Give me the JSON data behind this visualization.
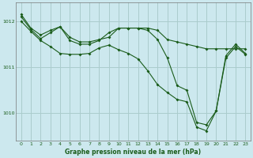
{
  "title": "Graphe pression niveau de la mer (hPa)",
  "background_color": "#cce8ee",
  "grid_color": "#aacccc",
  "line_color": "#1a5c1a",
  "xlim": [
    -0.5,
    23.5
  ],
  "ylim": [
    1009.4,
    1012.4
  ],
  "yticks": [
    1010,
    1011,
    1012
  ],
  "xticks": [
    0,
    1,
    2,
    3,
    4,
    5,
    6,
    7,
    8,
    9,
    10,
    11,
    12,
    13,
    14,
    15,
    16,
    17,
    18,
    19,
    20,
    21,
    22,
    23
  ],
  "series1": {
    "x": [
      0,
      1,
      2,
      3,
      4,
      5,
      6,
      7,
      8,
      9,
      10,
      11,
      12,
      13,
      14,
      15,
      16,
      17,
      18,
      19,
      20,
      21,
      22,
      23
    ],
    "y": [
      1012.15,
      1011.85,
      1011.7,
      1011.8,
      1011.88,
      1011.65,
      1011.55,
      1011.55,
      1011.6,
      1011.65,
      1011.85,
      1011.85,
      1011.85,
      1011.85,
      1011.8,
      1011.6,
      1011.55,
      1011.5,
      1011.45,
      1011.4,
      1011.4,
      1011.4,
      1011.4,
      1011.4
    ]
  },
  "series2": {
    "x": [
      0,
      1,
      2,
      3,
      4,
      5,
      6,
      7,
      8,
      9,
      10,
      11,
      12,
      13,
      14,
      15,
      16,
      17,
      18,
      19,
      20,
      21,
      22,
      23
    ],
    "y": [
      1012.1,
      1011.82,
      1011.62,
      1011.75,
      1011.88,
      1011.58,
      1011.5,
      1011.5,
      1011.58,
      1011.75,
      1011.85,
      1011.85,
      1011.85,
      1011.8,
      1011.6,
      1011.2,
      1010.6,
      1010.5,
      1009.8,
      1009.75,
      1010.05,
      1011.25,
      1011.5,
      1011.3
    ]
  },
  "series3": {
    "x": [
      0,
      1,
      2,
      3,
      4,
      5,
      6,
      7,
      8,
      9,
      10,
      11,
      12,
      13,
      14,
      15,
      16,
      17,
      18,
      19,
      20,
      21,
      22,
      23
    ],
    "y": [
      1012.0,
      1011.78,
      1011.58,
      1011.45,
      1011.3,
      1011.28,
      1011.28,
      1011.3,
      1011.42,
      1011.48,
      1011.38,
      1011.3,
      1011.18,
      1010.92,
      1010.62,
      1010.45,
      1010.3,
      1010.25,
      1009.7,
      1009.62,
      1010.05,
      1011.2,
      1011.45,
      1011.28
    ]
  }
}
